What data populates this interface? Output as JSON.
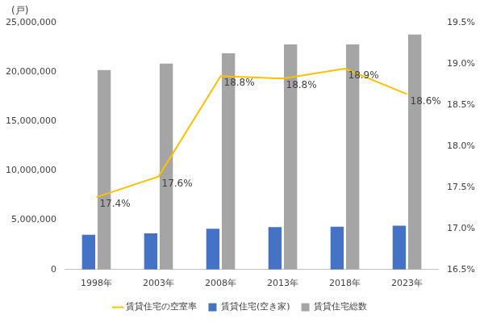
{
  "chart_data": {
    "type": "bar",
    "ylabel": "(戸)",
    "categories": [
      "1998年",
      "2003年",
      "2008年",
      "2013年",
      "2018年",
      "2023年"
    ],
    "series": [
      {
        "name": "賃貸住宅(空き家)",
        "type": "bar",
        "color": "#4472c4",
        "values": [
          3520000,
          3670000,
          4130000,
          4290000,
          4330000,
          4430000
        ]
      },
      {
        "name": "賃貸住宅総数",
        "type": "bar",
        "color": "#a5a5a5",
        "values": [
          20200000,
          20850000,
          21900000,
          22800000,
          22800000,
          23800000
        ]
      },
      {
        "name": "賃貸住宅の空室率",
        "type": "line",
        "axis": "y2",
        "color": "#ffc000",
        "values": [
          17.38,
          17.63,
          18.85,
          18.82,
          18.94,
          18.63
        ],
        "value_labels": [
          "17.4%",
          "17.6%",
          "18.8%",
          "18.8%",
          "18.9%",
          "18.6%"
        ],
        "data_labels": true
      }
    ],
    "ylim": [
      0,
      25000000
    ],
    "yticks": [
      0,
      {
        "value": 5000000,
        "label": "5,000,000"
      },
      {
        "value": 10000000,
        "label": "10,000,000"
      },
      {
        "value": 15000000,
        "label": "15,000,000"
      },
      {
        "value": 20000000,
        "label": "20,000,000"
      },
      {
        "value": 25000000,
        "label": "25,000,000"
      }
    ],
    "y2lim": [
      16.5,
      19.5
    ],
    "y2ticks": [
      {
        "value": 16.5,
        "label": "16.5%"
      },
      {
        "value": 17,
        "label": "17.0%"
      },
      {
        "value": 17.5,
        "label": "17.5%"
      },
      {
        "value": 18,
        "label": "18.0%"
      },
      {
        "value": 18.5,
        "label": "18.5%"
      },
      {
        "value": 19,
        "label": "19.0%"
      },
      {
        "value": 19.5,
        "label": "19.5%"
      }
    ],
    "grid": false,
    "legend": "bottom"
  }
}
